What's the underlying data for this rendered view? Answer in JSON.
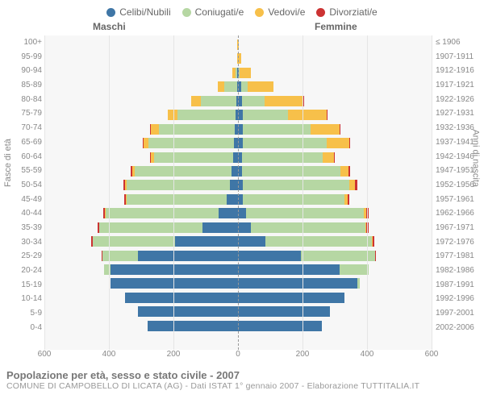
{
  "legend": [
    {
      "label": "Celibi/Nubili",
      "color": "#3f76a6"
    },
    {
      "label": "Coniugati/e",
      "color": "#b6d7a3"
    },
    {
      "label": "Vedovi/e",
      "color": "#f7c04a"
    },
    {
      "label": "Divorziati/e",
      "color": "#cc3333"
    }
  ],
  "gender": {
    "male": "Maschi",
    "female": "Femmine"
  },
  "axis": {
    "left_title": "Fasce di età",
    "right_title": "Anni di nascita",
    "x_max": 600,
    "x_ticks": [
      600,
      400,
      200,
      0,
      200,
      400,
      600
    ]
  },
  "footer": {
    "title": "Popolazione per età, sesso e stato civile - 2007",
    "subtitle": "COMUNE DI CAMPOBELLO DI LICATA (AG) - Dati ISTAT 1° gennaio 2007 - Elaborazione TUTTITALIA.IT"
  },
  "colors": {
    "celibi": "#3f76a6",
    "coniugati": "#b6d7a3",
    "vedovi": "#f7c04a",
    "divorziati": "#cc3333",
    "plot_bg": "#f7f7f7",
    "grid": "#e5e5e5"
  },
  "rows": [
    {
      "age": "100+",
      "birth": "≤ 1906",
      "m": {
        "c": 0,
        "m": 0,
        "v": 2,
        "d": 0
      },
      "f": {
        "c": 0,
        "m": 0,
        "v": 2,
        "d": 0
      }
    },
    {
      "age": "95-99",
      "birth": "1907-1911",
      "m": {
        "c": 0,
        "m": 0,
        "v": 3,
        "d": 0
      },
      "f": {
        "c": 1,
        "m": 0,
        "v": 8,
        "d": 0
      }
    },
    {
      "age": "90-94",
      "birth": "1912-1916",
      "m": {
        "c": 2,
        "m": 5,
        "v": 10,
        "d": 0
      },
      "f": {
        "c": 3,
        "m": 2,
        "v": 35,
        "d": 0
      }
    },
    {
      "age": "85-89",
      "birth": "1917-1921",
      "m": {
        "c": 3,
        "m": 40,
        "v": 20,
        "d": 0
      },
      "f": {
        "c": 10,
        "m": 20,
        "v": 80,
        "d": 0
      }
    },
    {
      "age": "80-84",
      "birth": "1922-1926",
      "m": {
        "c": 5,
        "m": 110,
        "v": 30,
        "d": 0
      },
      "f": {
        "c": 12,
        "m": 70,
        "v": 120,
        "d": 2
      }
    },
    {
      "age": "75-79",
      "birth": "1927-1931",
      "m": {
        "c": 8,
        "m": 180,
        "v": 30,
        "d": 0
      },
      "f": {
        "c": 15,
        "m": 140,
        "v": 120,
        "d": 2
      }
    },
    {
      "age": "70-74",
      "birth": "1932-1936",
      "m": {
        "c": 10,
        "m": 235,
        "v": 25,
        "d": 2
      },
      "f": {
        "c": 15,
        "m": 210,
        "v": 90,
        "d": 2
      }
    },
    {
      "age": "65-69",
      "birth": "1937-1941",
      "m": {
        "c": 12,
        "m": 265,
        "v": 15,
        "d": 2
      },
      "f": {
        "c": 15,
        "m": 260,
        "v": 70,
        "d": 3
      }
    },
    {
      "age": "60-64",
      "birth": "1942-1946",
      "m": {
        "c": 15,
        "m": 245,
        "v": 10,
        "d": 3
      },
      "f": {
        "c": 12,
        "m": 250,
        "v": 35,
        "d": 3
      }
    },
    {
      "age": "55-59",
      "birth": "1947-1951",
      "m": {
        "c": 20,
        "m": 300,
        "v": 8,
        "d": 5
      },
      "f": {
        "c": 12,
        "m": 305,
        "v": 25,
        "d": 5
      }
    },
    {
      "age": "50-54",
      "birth": "1952-1956",
      "m": {
        "c": 25,
        "m": 320,
        "v": 5,
        "d": 5
      },
      "f": {
        "c": 15,
        "m": 330,
        "v": 18,
        "d": 6
      }
    },
    {
      "age": "45-49",
      "birth": "1957-1961",
      "m": {
        "c": 35,
        "m": 310,
        "v": 3,
        "d": 4
      },
      "f": {
        "c": 15,
        "m": 315,
        "v": 10,
        "d": 6
      }
    },
    {
      "age": "40-44",
      "birth": "1962-1966",
      "m": {
        "c": 60,
        "m": 350,
        "v": 2,
        "d": 6
      },
      "f": {
        "c": 25,
        "m": 365,
        "v": 8,
        "d": 7
      }
    },
    {
      "age": "35-39",
      "birth": "1967-1971",
      "m": {
        "c": 110,
        "m": 320,
        "v": 0,
        "d": 5
      },
      "f": {
        "c": 40,
        "m": 355,
        "v": 3,
        "d": 7
      }
    },
    {
      "age": "30-34",
      "birth": "1972-1976",
      "m": {
        "c": 195,
        "m": 255,
        "v": 0,
        "d": 4
      },
      "f": {
        "c": 85,
        "m": 330,
        "v": 2,
        "d": 5
      }
    },
    {
      "age": "25-29",
      "birth": "1977-1981",
      "m": {
        "c": 310,
        "m": 110,
        "v": 0,
        "d": 2
      },
      "f": {
        "c": 195,
        "m": 230,
        "v": 0,
        "d": 3
      }
    },
    {
      "age": "20-24",
      "birth": "1982-1986",
      "m": {
        "c": 395,
        "m": 20,
        "v": 0,
        "d": 0
      },
      "f": {
        "c": 315,
        "m": 90,
        "v": 0,
        "d": 0
      }
    },
    {
      "age": "15-19",
      "birth": "1987-1991",
      "m": {
        "c": 395,
        "m": 0,
        "v": 0,
        "d": 0
      },
      "f": {
        "c": 370,
        "m": 8,
        "v": 0,
        "d": 0
      }
    },
    {
      "age": "10-14",
      "birth": "1992-1996",
      "m": {
        "c": 350,
        "m": 0,
        "v": 0,
        "d": 0
      },
      "f": {
        "c": 330,
        "m": 0,
        "v": 0,
        "d": 0
      }
    },
    {
      "age": "5-9",
      "birth": "1997-2001",
      "m": {
        "c": 310,
        "m": 0,
        "v": 0,
        "d": 0
      },
      "f": {
        "c": 285,
        "m": 0,
        "v": 0,
        "d": 0
      }
    },
    {
      "age": "0-4",
      "birth": "2002-2006",
      "m": {
        "c": 280,
        "m": 0,
        "v": 0,
        "d": 0
      },
      "f": {
        "c": 260,
        "m": 0,
        "v": 0,
        "d": 0
      }
    }
  ]
}
